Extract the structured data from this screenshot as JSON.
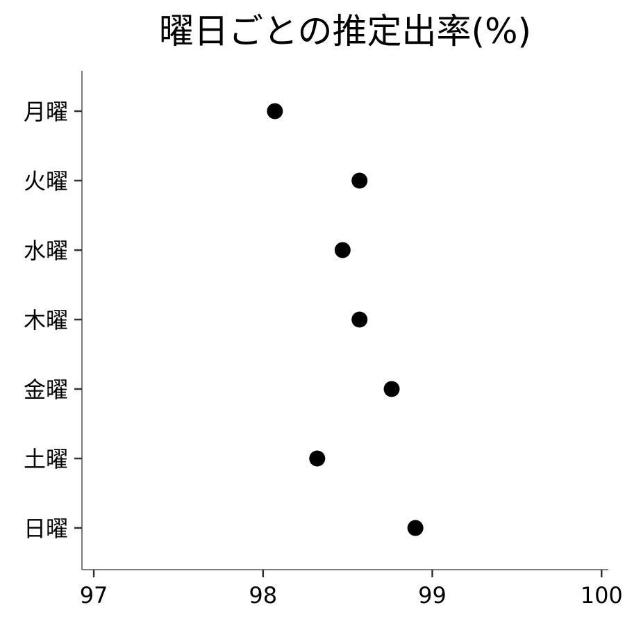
{
  "chart_data": {
    "type": "scatter",
    "title": "曜日ごとの推定出率(%)",
    "xlabel": "",
    "ylabel": "",
    "categories": [
      "月曜",
      "火曜",
      "水曜",
      "木曜",
      "金曜",
      "土曜",
      "日曜"
    ],
    "values": [
      98.07,
      98.57,
      98.47,
      98.57,
      98.76,
      98.32,
      98.9
    ],
    "xlim": [
      96.93,
      100.04
    ],
    "xticks": [
      97,
      98,
      99,
      100
    ],
    "xtick_labels": [
      "97",
      "98",
      "99",
      "100"
    ],
    "grid": false,
    "legend": "none",
    "marker_color": "#000000"
  }
}
